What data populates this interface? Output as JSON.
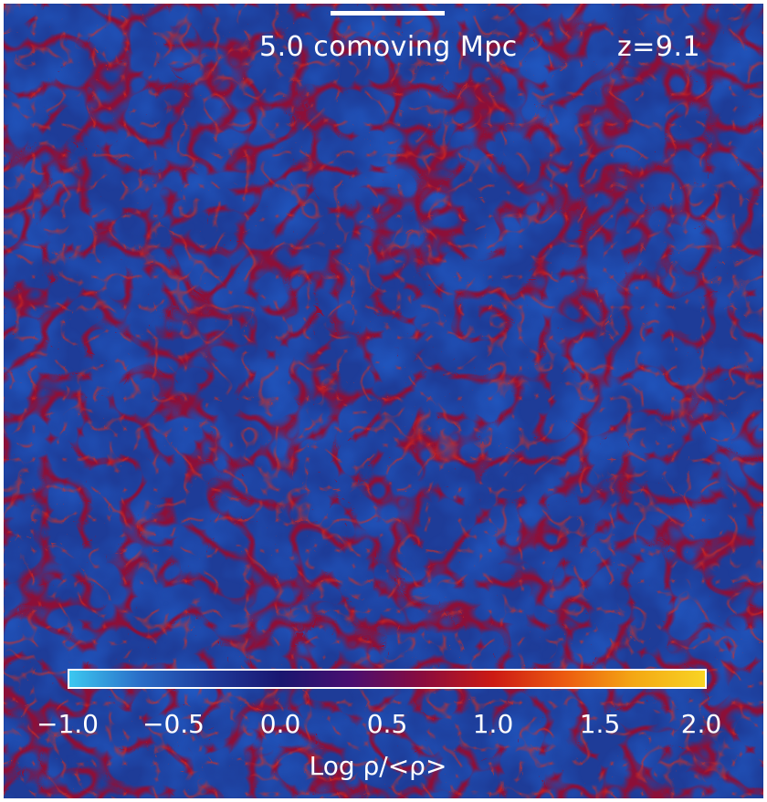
{
  "scale_bar": {
    "label": "5.0 comoving Mpc"
  },
  "redshift": {
    "label": "z=9.1"
  },
  "colorbar": {
    "min": -1.0,
    "max": 2.0,
    "colors": [
      "#3cc8f0",
      "#2a6ec8",
      "#1e3a9a",
      "#1a1670",
      "#4a0e70",
      "#8a0c3e",
      "#cc1a14",
      "#ec5a10",
      "#f4a814",
      "#f8d424"
    ],
    "ticks": [
      "−1.0",
      "−0.5",
      "0.0",
      "0.5",
      "1.0",
      "1.5",
      "2.0"
    ],
    "label": "Log ρ/<ρ>"
  }
}
